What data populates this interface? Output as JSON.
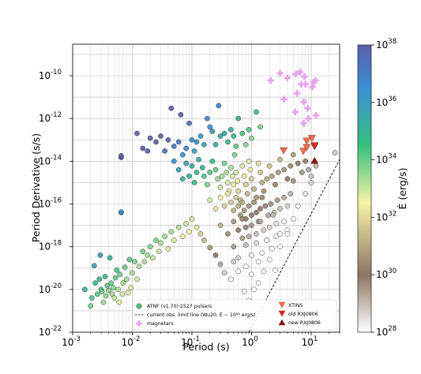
{
  "chart_data": {
    "type": "scatter",
    "title": "",
    "xlabel": "Period (s)",
    "ylabel": "Period Derivative (s/s)",
    "colorbar_label": "Ė (erg/s)",
    "x_scale": "log",
    "y_scale": "log",
    "xlim": [
      0.001,
      30
    ],
    "ylim": [
      1e-22,
      3e-09
    ],
    "x_ticks": [
      {
        "value": 0.001,
        "exp": "-3"
      },
      {
        "value": 0.01,
        "exp": "-2"
      },
      {
        "value": 0.1,
        "exp": "-1"
      },
      {
        "value": 1,
        "exp": "0"
      },
      {
        "value": 10,
        "exp": "1"
      }
    ],
    "y_ticks": [
      {
        "value": 1e-22,
        "exp": "-22"
      },
      {
        "value": 1e-20,
        "exp": "-20"
      },
      {
        "value": 1e-18,
        "exp": "-18"
      },
      {
        "value": 1e-16,
        "exp": "-16"
      },
      {
        "value": 1e-14,
        "exp": "-14"
      },
      {
        "value": 1e-12,
        "exp": "-12"
      },
      {
        "value": 1e-10,
        "exp": "-10"
      }
    ],
    "colorbar_ticks": [
      {
        "value": 1e+28,
        "exp": "28"
      },
      {
        "value": 1e+30,
        "exp": "30"
      },
      {
        "value": 1e+32,
        "exp": "32"
      },
      {
        "value": 1e+34,
        "exp": "34"
      },
      {
        "value": 1e+36,
        "exp": "36"
      },
      {
        "value": 1e+38,
        "exp": "38"
      }
    ],
    "tick_base": "10",
    "grid": true,
    "legend_position": "lower-right",
    "colormap": [
      "#ffffff",
      "#8c7665",
      "#f6f3a6",
      "#36c07f",
      "#3a8fd6",
      "#5b5fa8"
    ],
    "colors": {
      "atnf_edge": "#222222",
      "atnf_legend": "#52c27a",
      "magnetar": "#e6a3ea",
      "xtins": "#f46c4a",
      "old_rxj": "#e52420",
      "new_rxj": "#8a1610",
      "limit_line": "#000000"
    },
    "series": [
      {
        "name": "ATNF (v1.70):2527 pulsars",
        "marker": "circle",
        "color_by": "Ė",
        "points": [
          [
            0.0016,
            1e-20
          ],
          [
            0.002,
            1.7e-21
          ],
          [
            0.0021,
            4e-21
          ],
          [
            0.0023,
            1.3e-19
          ],
          [
            0.0024,
            2e-20
          ],
          [
            0.0026,
            6e-21
          ],
          [
            0.0028,
            3e-20
          ],
          [
            0.0029,
            4e-19
          ],
          [
            0.003,
            1e-20
          ],
          [
            0.0031,
            8e-21
          ],
          [
            0.0033,
            2.5e-21
          ],
          [
            0.0035,
            4e-20
          ],
          [
            0.0036,
            5e-21
          ],
          [
            0.0038,
            1.5e-20
          ],
          [
            0.004,
            9e-21
          ],
          [
            0.0042,
            3e-19
          ],
          [
            0.0044,
            2e-20
          ],
          [
            0.0046,
            6e-21
          ],
          [
            0.0048,
            1.2e-20
          ],
          [
            0.005,
            4e-21
          ],
          [
            0.0052,
            3.5e-20
          ],
          [
            0.0055,
            8e-20
          ],
          [
            0.0058,
            1e-20
          ],
          [
            0.006,
            2.5e-21
          ],
          [
            0.0062,
            5e-20
          ],
          [
            0.0065,
            1.5e-14
          ],
          [
            0.0065,
            4e-17
          ],
          [
            0.0068,
            6e-21
          ],
          [
            0.007,
            2e-20
          ],
          [
            0.0075,
            1.1e-19
          ],
          [
            0.008,
            3e-20
          ],
          [
            0.0085,
            7e-21
          ],
          [
            0.009,
            2.5e-19
          ],
          [
            0.0095,
            1.2e-20
          ],
          [
            0.01,
            6e-20
          ],
          [
            0.011,
            2e-19
          ],
          [
            0.012,
            3e-20
          ],
          [
            0.013,
            1.2e-19
          ],
          [
            0.015,
            6e-19
          ],
          [
            0.016,
            2e-19
          ],
          [
            0.018,
            4e-19
          ],
          [
            0.02,
            1e-18
          ],
          [
            0.022,
            3e-19
          ],
          [
            0.025,
            2e-18
          ],
          [
            0.028,
            6e-19
          ],
          [
            0.03,
            1.5e-18
          ],
          [
            0.035,
            3e-18
          ],
          [
            0.04,
            8e-19
          ],
          [
            0.045,
            5e-18
          ],
          [
            0.05,
            2e-18
          ],
          [
            0.06,
            8e-18
          ],
          [
            0.07,
            3e-18
          ],
          [
            0.08,
            1.2e-17
          ],
          [
            0.09,
            5e-18
          ],
          [
            0.1,
            2e-17
          ],
          [
            0.12,
            8e-18
          ],
          [
            0.14,
            4e-18
          ],
          [
            0.16,
            2e-18
          ],
          [
            0.2,
            9e-19
          ],
          [
            0.25,
            4e-19
          ],
          [
            0.3,
            1.5e-19
          ],
          [
            0.35,
            6e-20
          ],
          [
            0.45,
            3e-20
          ],
          [
            0.5,
            2e-19
          ],
          [
            0.6,
            7e-20
          ],
          [
            0.7,
            2.5e-18
          ],
          [
            0.012,
            2e-13
          ],
          [
            0.015,
            4e-14
          ],
          [
            0.018,
            3e-14
          ],
          [
            0.02,
            1.2e-13
          ],
          [
            0.025,
            8e-14
          ],
          [
            0.03,
            1.5e-13
          ],
          [
            0.035,
            3e-14
          ],
          [
            0.04,
            1e-13
          ],
          [
            0.045,
            3e-12
          ],
          [
            0.05,
            5e-14
          ],
          [
            0.06,
            8e-14
          ],
          [
            0.065,
            1.5e-12
          ],
          [
            0.07,
            2e-14
          ],
          [
            0.08,
            4e-14
          ],
          [
            0.09,
            6e-13
          ],
          [
            0.1,
            1e-13
          ],
          [
            0.11,
            3e-14
          ],
          [
            0.12,
            8e-14
          ],
          [
            0.14,
            1.5e-13
          ],
          [
            0.16,
            6e-14
          ],
          [
            0.18,
            1e-12
          ],
          [
            0.2,
            4e-13
          ],
          [
            0.22,
            2.5e-13
          ],
          [
            0.25,
            6e-14
          ],
          [
            0.28,
            4e-12
          ],
          [
            0.3,
            1.5e-13
          ],
          [
            0.35,
            2e-13
          ],
          [
            0.4,
            8e-14
          ],
          [
            0.45,
            3e-13
          ],
          [
            0.5,
            1.5e-13
          ],
          [
            0.55,
            5e-14
          ],
          [
            0.6,
            1e-12
          ],
          [
            0.7,
            2e-13
          ],
          [
            0.8,
            6e-14
          ],
          [
            0.9,
            3e-13
          ],
          [
            1.0,
            1.2e-13
          ],
          [
            1.2,
            2e-12
          ],
          [
            1.4,
            4e-13
          ],
          [
            0.05,
            1e-14
          ],
          [
            0.06,
            4e-15
          ],
          [
            0.07,
            1.5e-15
          ],
          [
            0.08,
            8e-15
          ],
          [
            0.09,
            2e-15
          ],
          [
            0.1,
            6e-15
          ],
          [
            0.11,
            1e-15
          ],
          [
            0.12,
            3e-15
          ],
          [
            0.13,
            1.2e-14
          ],
          [
            0.15,
            5e-15
          ],
          [
            0.16,
            2e-15
          ],
          [
            0.18,
            8e-16
          ],
          [
            0.2,
            3e-15
          ],
          [
            0.22,
            1e-14
          ],
          [
            0.25,
            4e-15
          ],
          [
            0.27,
            1.5e-15
          ],
          [
            0.3,
            6e-16
          ],
          [
            0.32,
            2e-15
          ],
          [
            0.35,
            8e-15
          ],
          [
            0.38,
            3e-15
          ],
          [
            0.4,
            1e-15
          ],
          [
            0.42,
            4e-16
          ],
          [
            0.45,
            5e-15
          ],
          [
            0.48,
            2e-15
          ],
          [
            0.5,
            8e-16
          ],
          [
            0.52,
            2e-14
          ],
          [
            0.55,
            3e-15
          ],
          [
            0.58,
            1.2e-15
          ],
          [
            0.6,
            4e-16
          ],
          [
            0.65,
            1.5e-16
          ],
          [
            0.7,
            6e-15
          ],
          [
            0.75,
            2e-15
          ],
          [
            0.8,
            8e-16
          ],
          [
            0.85,
            3e-16
          ],
          [
            0.9,
            1e-14
          ],
          [
            0.95,
            4e-15
          ],
          [
            1.0,
            1.5e-15
          ],
          [
            1.1,
            5e-16
          ],
          [
            1.2,
            2e-16
          ],
          [
            1.3,
            8e-15
          ],
          [
            1.4,
            3e-15
          ],
          [
            1.5,
            1e-15
          ],
          [
            1.6,
            4e-16
          ],
          [
            1.8,
            1.5e-15
          ],
          [
            2.0,
            6e-15
          ],
          [
            2.2,
            2e-15
          ],
          [
            2.5,
            8e-16
          ],
          [
            2.8,
            3e-15
          ],
          [
            3.0,
            1.2e-14
          ],
          [
            3.5,
            4e-15
          ],
          [
            4.0,
            1.5e-15
          ],
          [
            4.5,
            6e-15
          ],
          [
            5.0,
            2e-14
          ],
          [
            6.0,
            8e-15
          ],
          [
            7.0,
            3e-15
          ],
          [
            8.0,
            1e-14
          ],
          [
            9.0,
            4e-15
          ],
          [
            10.0,
            2e-15
          ],
          [
            12.0,
            6e-15
          ],
          [
            0.2,
            1.5e-16
          ],
          [
            0.25,
            6e-17
          ],
          [
            0.3,
            2e-16
          ],
          [
            0.35,
            8e-17
          ],
          [
            0.4,
            3e-16
          ],
          [
            0.45,
            1.2e-16
          ],
          [
            0.5,
            5e-17
          ],
          [
            0.55,
            2e-16
          ],
          [
            0.6,
            8e-17
          ],
          [
            0.65,
            3e-17
          ],
          [
            0.7,
            1.2e-16
          ],
          [
            0.75,
            5e-17
          ],
          [
            0.8,
            2e-17
          ],
          [
            0.9,
            8e-17
          ],
          [
            1.0,
            3e-17
          ],
          [
            1.1,
            1.2e-16
          ],
          [
            1.2,
            4e-17
          ],
          [
            1.3,
            1.5e-17
          ],
          [
            1.4,
            6e-17
          ],
          [
            1.5,
            2e-16
          ],
          [
            1.7,
            8e-17
          ],
          [
            1.9,
            3e-17
          ],
          [
            2.1,
            1e-16
          ],
          [
            2.4,
            4e-17
          ],
          [
            2.7,
            1.5e-16
          ],
          [
            3.0,
            6e-17
          ],
          [
            3.5,
            2e-16
          ],
          [
            4.0,
            8e-17
          ],
          [
            4.5,
            3e-16
          ],
          [
            5.0,
            1.2e-15
          ],
          [
            0.3,
            1e-17
          ],
          [
            0.4,
            4e-18
          ],
          [
            0.5,
            1.5e-17
          ],
          [
            0.6,
            6e-18
          ],
          [
            0.7,
            2e-17
          ],
          [
            0.8,
            8e-18
          ],
          [
            0.9,
            3e-18
          ],
          [
            1.0,
            1e-17
          ],
          [
            1.2,
            4e-18
          ],
          [
            1.4,
            1.5e-17
          ],
          [
            1.6,
            6e-18
          ],
          [
            1.8,
            2e-18
          ],
          [
            2.0,
            8e-18
          ],
          [
            2.3,
            3e-17
          ],
          [
            2.6,
            1.2e-17
          ],
          [
            3.0,
            4e-18
          ],
          [
            3.5,
            1.5e-17
          ],
          [
            4.0,
            6e-18
          ],
          [
            5.0,
            2e-17
          ],
          [
            6.0,
            8e-17
          ],
          [
            8.0,
            3e-16
          ],
          [
            10.0,
            1e-15
          ],
          [
            0.5,
            1e-18
          ],
          [
            0.6,
            3e-19
          ],
          [
            0.8,
            1.2e-18
          ],
          [
            1.0,
            4e-19
          ],
          [
            1.2,
            1.5e-18
          ],
          [
            1.5,
            5e-19
          ],
          [
            1.8,
            2e-18
          ],
          [
            2.2,
            8e-19
          ],
          [
            2.6,
            3e-18
          ],
          [
            3.0,
            1e-18
          ],
          [
            4.0,
            4e-18
          ],
          [
            0.8,
            1.2e-19
          ],
          [
            1.0,
            5e-20
          ],
          [
            1.3,
            2e-19
          ],
          [
            1.6,
            7e-20
          ],
          [
            2.0,
            2.5e-19
          ],
          [
            2.5,
            8e-20
          ],
          [
            0.75,
            8e-21
          ],
          [
            0.9,
            3e-21
          ],
          [
            1.1,
            1e-20
          ],
          [
            1.3,
            2e-20
          ],
          [
            0.0065,
            1.8e-14
          ],
          [
            0.0065,
            4.2e-17
          ],
          [
            25.0,
            2.5e-14
          ]
        ]
      },
      {
        "name": "magnetars",
        "marker": "plus",
        "color": "#e6a3ea",
        "points": [
          [
            2.1,
            6e-11
          ],
          [
            3.0,
            1.3e-10
          ],
          [
            4.0,
            8e-11
          ],
          [
            5.5,
            1.2e-10
          ],
          [
            5.8,
            1.5e-11
          ],
          [
            6.5,
            1.5e-10
          ],
          [
            6.8,
            4e-11
          ],
          [
            7.5,
            6e-12
          ],
          [
            7.7,
            9e-11
          ],
          [
            8.0,
            4e-11
          ],
          [
            8.7,
            3e-12
          ],
          [
            9.0,
            1e-12
          ],
          [
            10.5,
            3e-11
          ],
          [
            11.0,
            5e-11
          ],
          [
            11.8,
            6e-11
          ],
          [
            12.0,
            1.4e-12
          ],
          [
            7.5,
            6e-13
          ],
          [
            5.4,
            2e-12
          ],
          [
            3.5,
            8e-12
          ]
        ]
      },
      {
        "name": "XTINS",
        "marker": "triangle-down",
        "color": "#f46c4a",
        "points": [
          [
            3.45,
            3.2e-14
          ],
          [
            7.4,
            3e-14
          ],
          [
            8.4,
            9e-14
          ],
          [
            10.3,
            1.2e-13
          ],
          [
            11.4,
            5e-14
          ],
          [
            8.4,
            4.5e-14
          ]
        ]
      },
      {
        "name": "old RXJ0806",
        "marker": "triangle-down",
        "color": "#e52420",
        "points": [
          [
            11.37,
            5.5e-14
          ]
        ]
      },
      {
        "name": "new RXJ0806",
        "marker": "triangle-up",
        "color": "#8a1610",
        "points": [
          [
            11.37,
            1.05e-14
          ]
        ]
      }
    ],
    "limit_line": {
      "label": "current obs. limit line (Wu20, Ė ~ 10²⁸ erg/s)",
      "from": [
        0.9,
        1e-22
      ],
      "to": [
        30,
        1.2e-14
      ]
    }
  }
}
